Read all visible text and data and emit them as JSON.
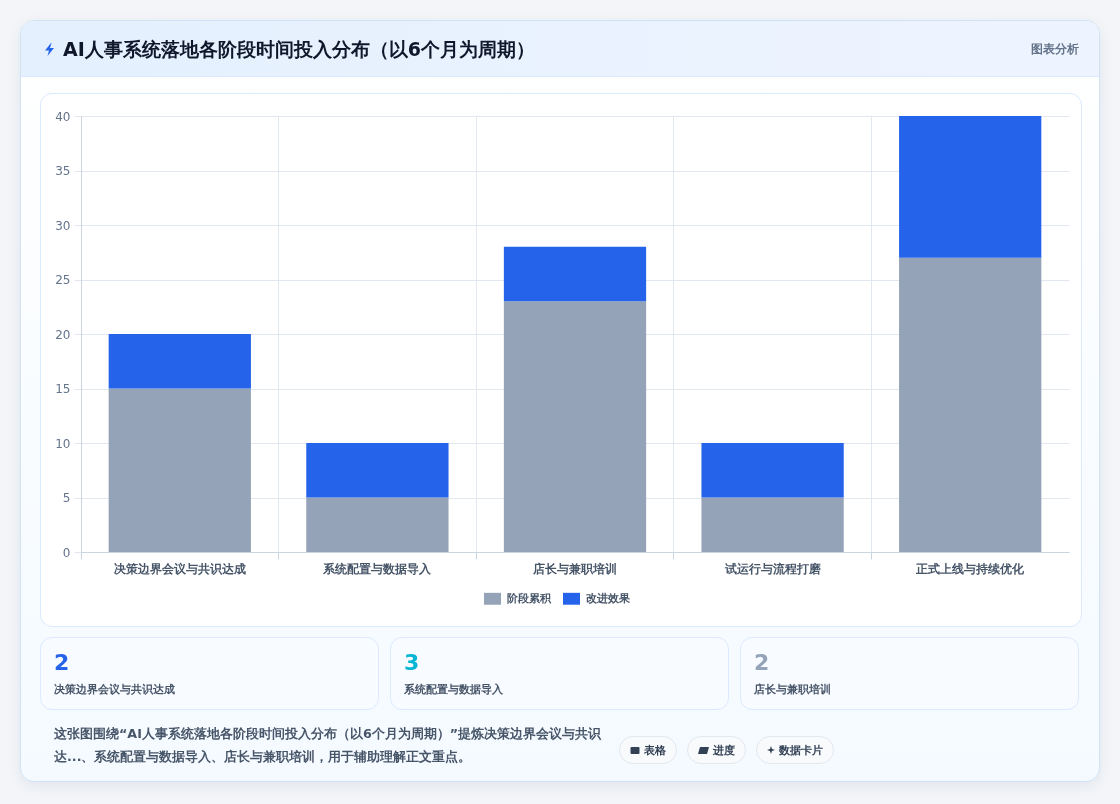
{
  "chart_data": [
    {
      "type": "bar",
      "title": "AI人事系统落地各阶段时间投入分布（以6个月为周期）",
      "categories": [
        "决策边界会议与共识达成",
        "系统配置与数据导入",
        "店长与兼职培训",
        "试运行与流程打磨",
        "正式上线与持续优化"
      ],
      "series": [
        {
          "name": "阶段累积",
          "color": "#94a3b8",
          "values": [
            15,
            5,
            23,
            5,
            27
          ]
        },
        {
          "name": "改进效果",
          "color": "#2563eb",
          "values": [
            5,
            5,
            5,
            5,
            13
          ]
        }
      ],
      "stacked": true,
      "ylim": [
        0,
        40
      ],
      "yticks": [
        0,
        5,
        10,
        15,
        20,
        25,
        30,
        35,
        40
      ],
      "grid": true,
      "legend": "bottom",
      "annotations": [
        "图表分析",
        "这张图围绕“AI人事系统落地各阶段时间投入分布（以6个月为周期）”提炼决策边界会议与共识达...、系统配置与数据导入、店长与兼职培训，用于辅助理解正文重点。",
        "表格",
        "进度",
        "数据卡片"
      ]
    },
    {
      "type": "other",
      "annotations": [
        "2",
        "决策边界会议与共识达成",
        "3",
        "系统配置与数据导入",
        "2",
        "店长与兼职培训"
      ]
    }
  ]
}
